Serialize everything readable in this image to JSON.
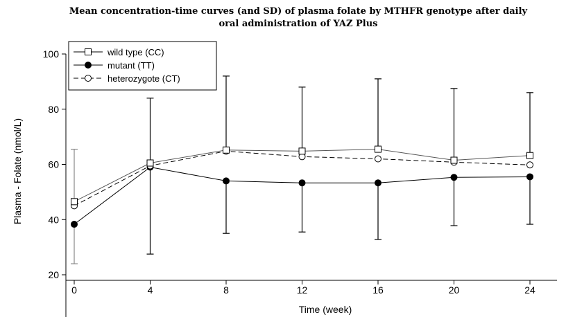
{
  "chart_data": {
    "type": "line",
    "title_line1": "Mean concentration-time curves (and SD) of plasma folate by MTHFR genotype after daily",
    "title_line2": "oral administration of YAZ Plus",
    "xlabel": "Time (week)",
    "ylabel": "Plasma - Folate (nmol/L)",
    "x": [
      0,
      4,
      8,
      12,
      16,
      20,
      24
    ],
    "xlim": [
      0,
      25.5
    ],
    "ylim": [
      20,
      100
    ],
    "xticks": [
      0,
      4,
      8,
      12,
      16,
      20,
      24
    ],
    "yticks": [
      20,
      40,
      60,
      80,
      100
    ],
    "legend_position": "top-left",
    "series": [
      {
        "name": "wild type (CC)",
        "marker": "open-square",
        "line_style": "solid",
        "values": [
          46.5,
          60.5,
          65.2,
          64.8,
          65.5,
          61.5,
          63.2
        ],
        "sd_upper": [
          null,
          84,
          92,
          88,
          91,
          87.5,
          86
        ]
      },
      {
        "name": "mutant (TT)",
        "marker": "filled-circle",
        "line_style": "solid",
        "values": [
          38.3,
          59,
          54,
          53.3,
          53.3,
          55.3,
          55.5
        ],
        "sd_lower": [
          24,
          27.5,
          35,
          35.5,
          32.8,
          37.8,
          38.3
        ]
      },
      {
        "name": "heterozygote (CT)",
        "marker": "open-circle",
        "line_style": "dashed",
        "values": [
          45,
          59.5,
          64.8,
          62.8,
          62,
          60.8,
          59.8
        ],
        "sd_upper": [
          65.5,
          null,
          null,
          null,
          null,
          null,
          null
        ]
      }
    ]
  }
}
